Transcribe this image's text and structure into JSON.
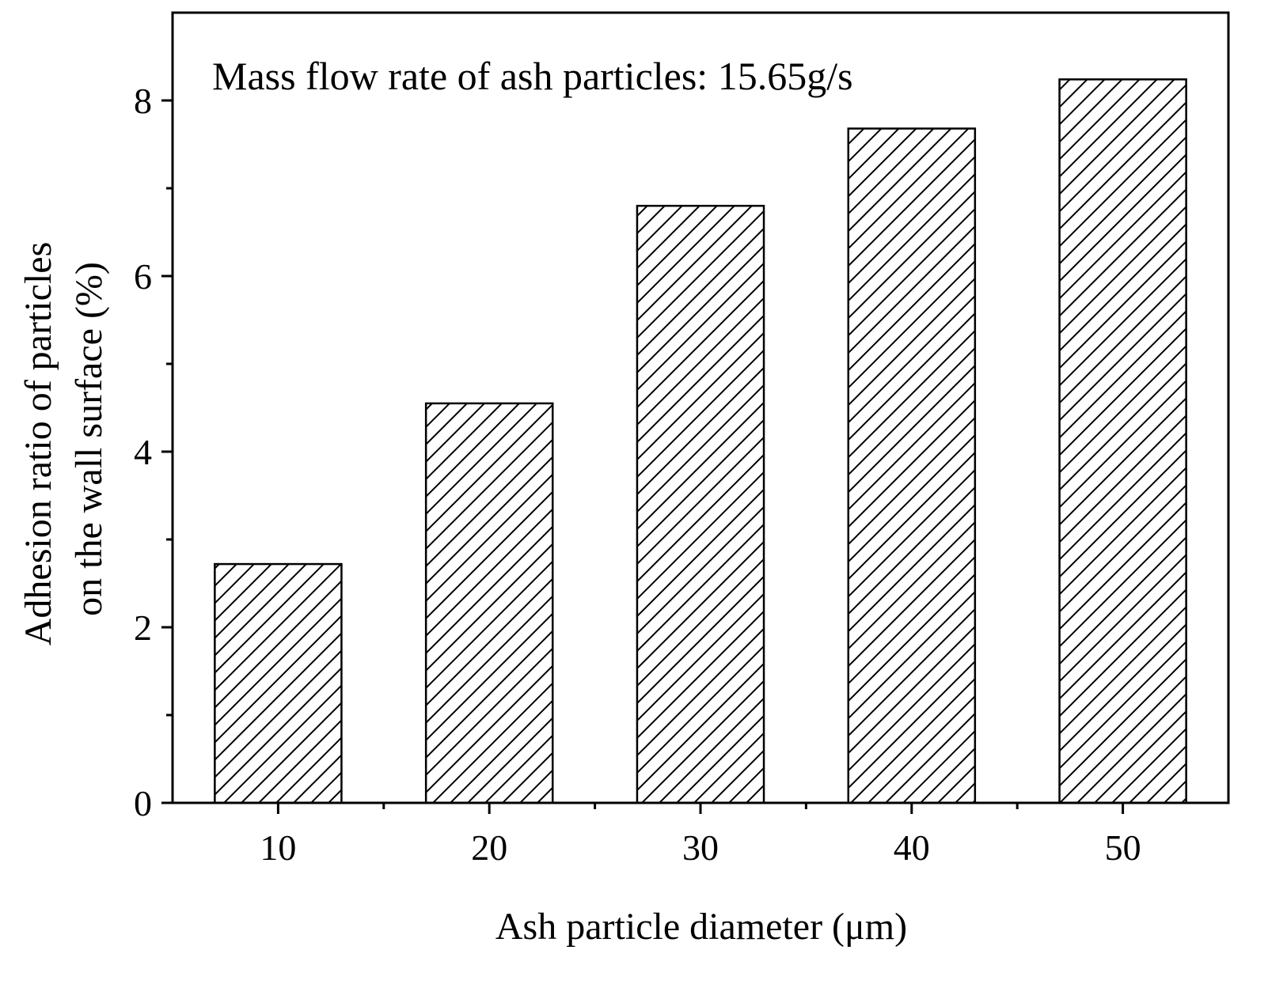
{
  "chart_data": {
    "type": "bar",
    "categories": [
      "10",
      "20",
      "30",
      "40",
      "50"
    ],
    "values": [
      2.72,
      4.55,
      6.8,
      7.68,
      8.24
    ],
    "xlabel": "Ash particle diameter (μm)",
    "ylabel_lines": [
      "Adhesion ratio of particles",
      "on the wall surface (%)"
    ],
    "annotation": "Mass flow rate of ash particles: 15.65g/s",
    "ylim": [
      0,
      9
    ],
    "yticks": [
      0,
      2,
      4,
      6,
      8
    ],
    "ytick_labels": [
      "0",
      "2",
      "4",
      "6",
      "8"
    ],
    "y_minor_step": 1,
    "bar_fill": "hatched",
    "bar_color": "#ffffff",
    "edge_color": "#000000",
    "grid": false,
    "legend": "none"
  }
}
